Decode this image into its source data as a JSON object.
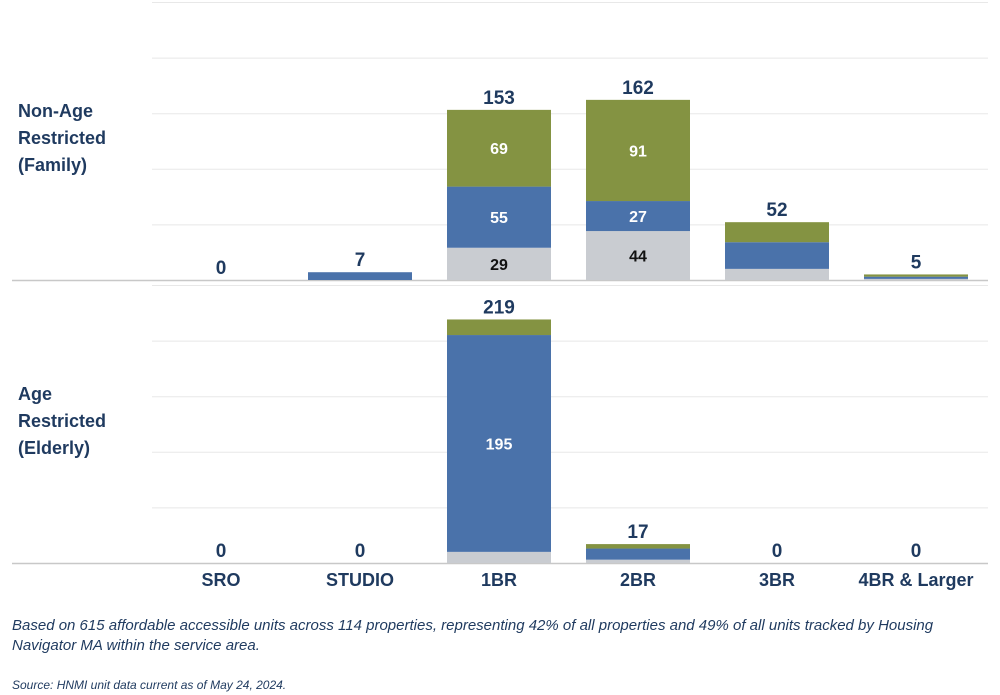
{
  "chart_data": {
    "type": "bar",
    "stacked": true,
    "categories": [
      "SRO",
      "STUDIO",
      "1BR",
      "2BR",
      "3BR",
      "4BR & Larger"
    ],
    "colors": {
      "grey": "#c9ccd1",
      "blue": "#4a72aa",
      "green": "#849342",
      "text_dark": "#1f3a5f",
      "grid": "#e8e8e8",
      "axis": "#c8c8c8"
    },
    "panels": [
      {
        "label": "Non-Age\nRestricted\n(Family)",
        "ylim": [
          0,
          250
        ],
        "totals": [
          0,
          7,
          153,
          162,
          52,
          5
        ],
        "segments": [
          {
            "color_key": "grey",
            "values": [
              0,
              0,
              29,
              44,
              10,
              1
            ]
          },
          {
            "color_key": "blue",
            "values": [
              0,
              7,
              55,
              27,
              24,
              2
            ]
          },
          {
            "color_key": "green",
            "values": [
              0,
              0,
              69,
              91,
              18,
              2
            ]
          }
        ],
        "labels": [
          {
            "cat": 2,
            "seg": 0,
            "text": "29"
          },
          {
            "cat": 2,
            "seg": 1,
            "text": "55"
          },
          {
            "cat": 2,
            "seg": 2,
            "text": "69"
          },
          {
            "cat": 3,
            "seg": 0,
            "text": "44"
          },
          {
            "cat": 3,
            "seg": 1,
            "text": "27"
          },
          {
            "cat": 3,
            "seg": 2,
            "text": "91"
          }
        ]
      },
      {
        "label": "Age\nRestricted\n(Elderly)",
        "ylim": [
          0,
          250
        ],
        "totals": [
          0,
          0,
          219,
          17,
          0,
          0
        ],
        "segments": [
          {
            "color_key": "grey",
            "values": [
              0,
              0,
              10,
              3,
              0,
              0
            ]
          },
          {
            "color_key": "blue",
            "values": [
              0,
              0,
              195,
              10,
              0,
              0
            ]
          },
          {
            "color_key": "green",
            "values": [
              0,
              0,
              14,
              4,
              0,
              0
            ]
          }
        ],
        "labels": [
          {
            "cat": 2,
            "seg": 1,
            "text": "195"
          }
        ]
      }
    ]
  },
  "footnote": "Based on 615 affordable accessible units across 114 properties, representing 42% of all properties and 49% of all units tracked by Housing Navigator MA within the service area.",
  "source": "Source: HNMI unit data current as of May 24, 2024."
}
